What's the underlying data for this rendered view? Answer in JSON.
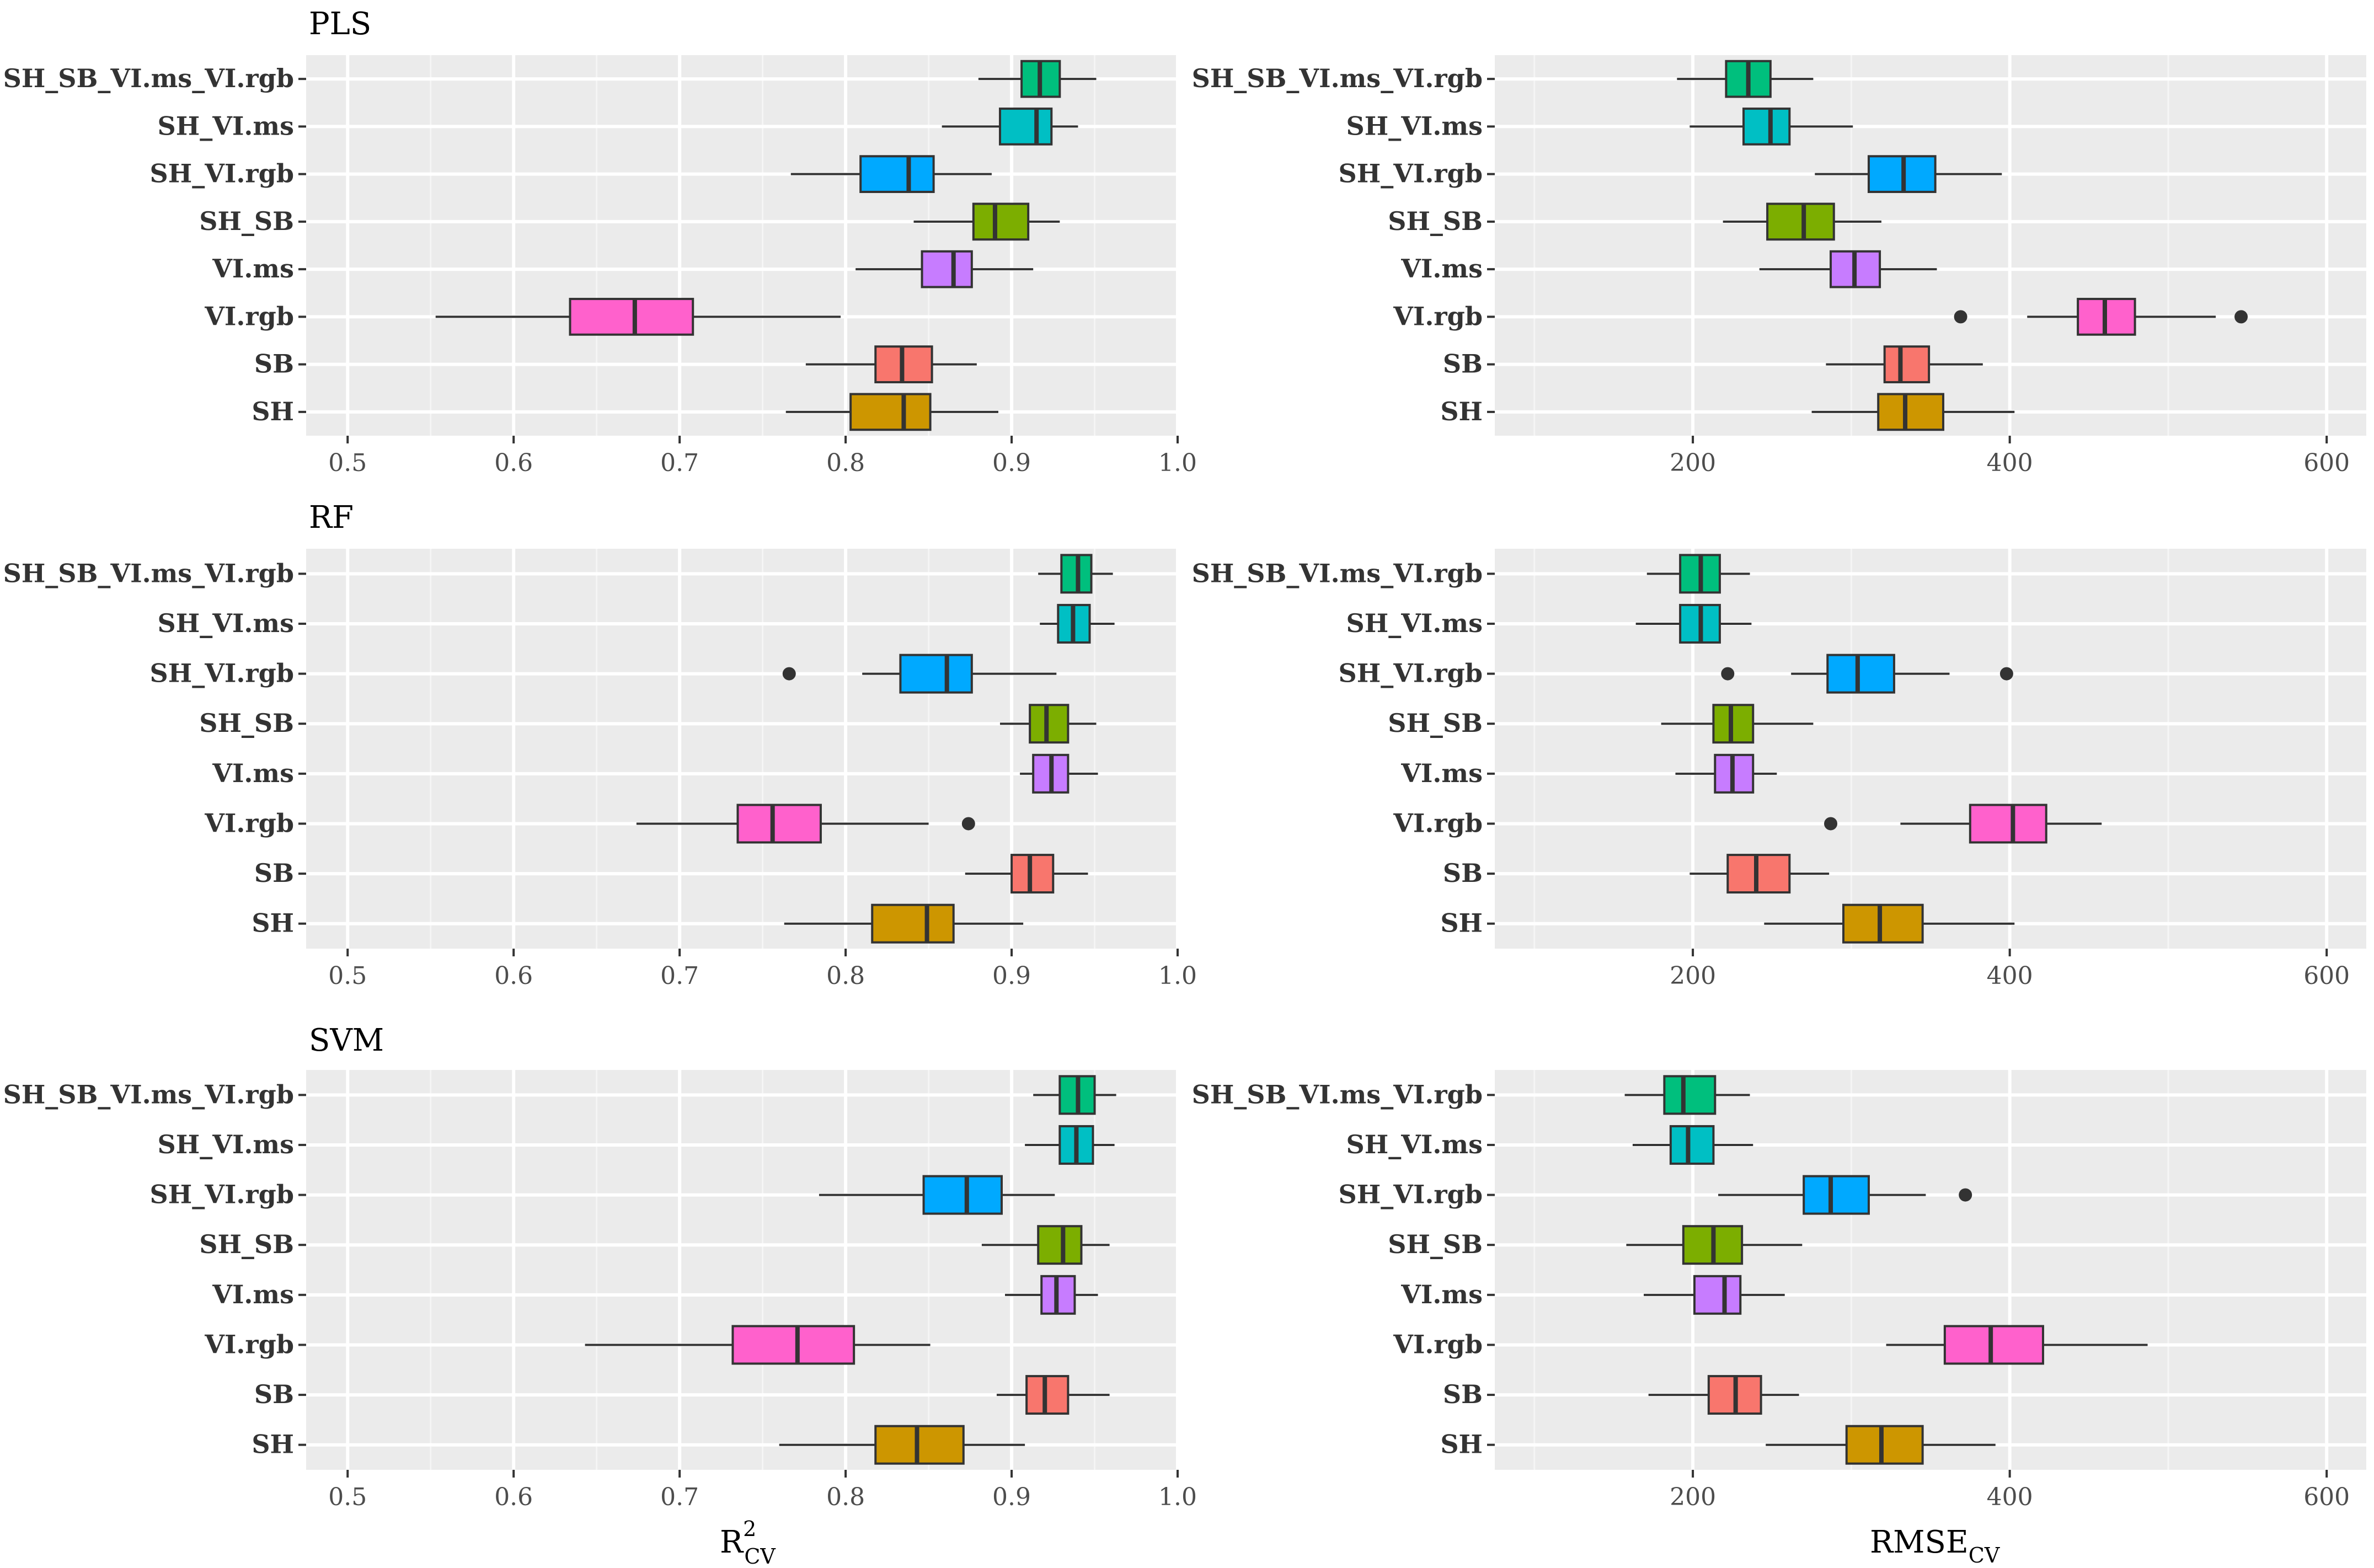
{
  "chart_data": [
    {
      "type": "boxplot",
      "title": "PLS",
      "metric": "R2",
      "xlim": [
        0.475,
        1.0
      ],
      "xticks": [
        "0.5",
        "0.6",
        "0.7",
        "0.8",
        "0.9",
        "1.0"
      ],
      "xtick_values": [
        0.5,
        0.6,
        0.7,
        0.8,
        0.9,
        1.0
      ],
      "categories": [
        "SH_SB_VI.ms_VI.rgb",
        "SH_VI.ms",
        "SH_VI.rgb",
        "SH_SB",
        "VI.ms",
        "VI.rgb",
        "SB",
        "SH"
      ],
      "series": [
        {
          "name": "SH_SB_VI.ms_VI.rgb",
          "whisker_low": 0.88,
          "q1": 0.906,
          "median": 0.917,
          "q3": 0.929,
          "whisker_high": 0.951,
          "outliers": []
        },
        {
          "name": "SH_VI.ms",
          "whisker_low": 0.858,
          "q1": 0.893,
          "median": 0.915,
          "q3": 0.924,
          "whisker_high": 0.94,
          "outliers": []
        },
        {
          "name": "SH_VI.rgb",
          "whisker_low": 0.767,
          "q1": 0.809,
          "median": 0.838,
          "q3": 0.853,
          "whisker_high": 0.888,
          "outliers": []
        },
        {
          "name": "SH_SB",
          "whisker_low": 0.841,
          "q1": 0.877,
          "median": 0.89,
          "q3": 0.91,
          "whisker_high": 0.929,
          "outliers": []
        },
        {
          "name": "VI.ms",
          "whisker_low": 0.806,
          "q1": 0.846,
          "median": 0.865,
          "q3": 0.876,
          "whisker_high": 0.913,
          "outliers": []
        },
        {
          "name": "VI.rgb",
          "whisker_low": 0.553,
          "q1": 0.634,
          "median": 0.673,
          "q3": 0.708,
          "whisker_high": 0.797,
          "outliers": []
        },
        {
          "name": "SB",
          "whisker_low": 0.776,
          "q1": 0.818,
          "median": 0.834,
          "q3": 0.852,
          "whisker_high": 0.879,
          "outliers": []
        },
        {
          "name": "SH",
          "whisker_low": 0.764,
          "q1": 0.803,
          "median": 0.835,
          "q3": 0.851,
          "whisker_high": 0.892,
          "outliers": []
        }
      ]
    },
    {
      "type": "boxplot",
      "title": "",
      "metric": "RMSE",
      "xlim": [
        75,
        625
      ],
      "xticks": [
        "200",
        "400",
        "600"
      ],
      "xtick_values": [
        200,
        400,
        600
      ],
      "categories": [
        "SH_SB_VI.ms_VI.rgb",
        "SH_VI.ms",
        "SH_VI.rgb",
        "SH_SB",
        "VI.ms",
        "VI.rgb",
        "SB",
        "SH"
      ],
      "series": [
        {
          "name": "SH_SB_VI.ms_VI.rgb",
          "whisker_low": 190,
          "q1": 221,
          "median": 235,
          "q3": 249,
          "whisker_high": 276,
          "outliers": []
        },
        {
          "name": "SH_VI.ms",
          "whisker_low": 198,
          "q1": 232,
          "median": 249,
          "q3": 261,
          "whisker_high": 301,
          "outliers": []
        },
        {
          "name": "SH_VI.rgb",
          "whisker_low": 277,
          "q1": 311,
          "median": 333,
          "q3": 353,
          "whisker_high": 395,
          "outliers": []
        },
        {
          "name": "SH_SB",
          "whisker_low": 219,
          "q1": 247,
          "median": 270,
          "q3": 289,
          "whisker_high": 319,
          "outliers": []
        },
        {
          "name": "VI.ms",
          "whisker_low": 242,
          "q1": 287,
          "median": 302,
          "q3": 318,
          "whisker_high": 354,
          "outliers": []
        },
        {
          "name": "VI.rgb",
          "whisker_low": 411,
          "q1": 443,
          "median": 460,
          "q3": 479,
          "whisker_high": 530,
          "outliers": [
            369,
            546
          ]
        },
        {
          "name": "SB",
          "whisker_low": 284,
          "q1": 321,
          "median": 331,
          "q3": 349,
          "whisker_high": 383,
          "outliers": []
        },
        {
          "name": "SH",
          "whisker_low": 275,
          "q1": 317,
          "median": 334,
          "q3": 358,
          "whisker_high": 403,
          "outliers": []
        }
      ]
    },
    {
      "type": "boxplot",
      "title": "RF",
      "metric": "R2",
      "xlim": [
        0.475,
        1.0
      ],
      "xticks": [
        "0.5",
        "0.6",
        "0.7",
        "0.8",
        "0.9",
        "1.0"
      ],
      "xtick_values": [
        0.5,
        0.6,
        0.7,
        0.8,
        0.9,
        1.0
      ],
      "categories": [
        "SH_SB_VI.ms_VI.rgb",
        "SH_VI.ms",
        "SH_VI.rgb",
        "SH_SB",
        "VI.ms",
        "VI.rgb",
        "SB",
        "SH"
      ],
      "series": [
        {
          "name": "SH_SB_VI.ms_VI.rgb",
          "whisker_low": 0.916,
          "q1": 0.93,
          "median": 0.94,
          "q3": 0.948,
          "whisker_high": 0.961,
          "outliers": []
        },
        {
          "name": "SH_VI.ms",
          "whisker_low": 0.917,
          "q1": 0.928,
          "median": 0.937,
          "q3": 0.947,
          "whisker_high": 0.962,
          "outliers": []
        },
        {
          "name": "SH_VI.rgb",
          "whisker_low": 0.81,
          "q1": 0.833,
          "median": 0.861,
          "q3": 0.876,
          "whisker_high": 0.927,
          "outliers": [
            0.766
          ]
        },
        {
          "name": "SH_SB",
          "whisker_low": 0.893,
          "q1": 0.911,
          "median": 0.921,
          "q3": 0.934,
          "whisker_high": 0.951,
          "outliers": []
        },
        {
          "name": "VI.ms",
          "whisker_low": 0.905,
          "q1": 0.913,
          "median": 0.924,
          "q3": 0.934,
          "whisker_high": 0.952,
          "outliers": []
        },
        {
          "name": "VI.rgb",
          "whisker_low": 0.674,
          "q1": 0.735,
          "median": 0.756,
          "q3": 0.785,
          "whisker_high": 0.85,
          "outliers": [
            0.874
          ]
        },
        {
          "name": "SB",
          "whisker_low": 0.872,
          "q1": 0.9,
          "median": 0.911,
          "q3": 0.925,
          "whisker_high": 0.946,
          "outliers": []
        },
        {
          "name": "SH",
          "whisker_low": 0.763,
          "q1": 0.816,
          "median": 0.849,
          "q3": 0.865,
          "whisker_high": 0.907,
          "outliers": []
        }
      ]
    },
    {
      "type": "boxplot",
      "title": "",
      "metric": "RMSE",
      "xlim": [
        75,
        625
      ],
      "xticks": [
        "200",
        "400",
        "600"
      ],
      "xtick_values": [
        200,
        400,
        600
      ],
      "categories": [
        "SH_SB_VI.ms_VI.rgb",
        "SH_VI.ms",
        "SH_VI.rgb",
        "SH_SB",
        "VI.ms",
        "VI.rgb",
        "SB",
        "SH"
      ],
      "series": [
        {
          "name": "SH_SB_VI.ms_VI.rgb",
          "whisker_low": 171,
          "q1": 192,
          "median": 205,
          "q3": 217,
          "whisker_high": 236,
          "outliers": []
        },
        {
          "name": "SH_VI.ms",
          "whisker_low": 164,
          "q1": 192,
          "median": 205,
          "q3": 217,
          "whisker_high": 237,
          "outliers": []
        },
        {
          "name": "SH_VI.rgb",
          "whisker_low": 262,
          "q1": 285,
          "median": 304,
          "q3": 327,
          "whisker_high": 362,
          "outliers": [
            222,
            398
          ]
        },
        {
          "name": "SH_SB",
          "whisker_low": 180,
          "q1": 213,
          "median": 224,
          "q3": 238,
          "whisker_high": 276,
          "outliers": []
        },
        {
          "name": "VI.ms",
          "whisker_low": 189,
          "q1": 214,
          "median": 225,
          "q3": 238,
          "whisker_high": 253,
          "outliers": []
        },
        {
          "name": "VI.rgb",
          "whisker_low": 331,
          "q1": 375,
          "median": 402,
          "q3": 423,
          "whisker_high": 458,
          "outliers": [
            287
          ]
        },
        {
          "name": "SB",
          "whisker_low": 198,
          "q1": 222,
          "median": 240,
          "q3": 261,
          "whisker_high": 286,
          "outliers": []
        },
        {
          "name": "SH",
          "whisker_low": 245,
          "q1": 295,
          "median": 318,
          "q3": 345,
          "whisker_high": 403,
          "outliers": []
        }
      ]
    },
    {
      "type": "boxplot",
      "title": "SVM",
      "metric": "R2",
      "xlim": [
        0.475,
        1.0
      ],
      "xticks": [
        "0.5",
        "0.6",
        "0.7",
        "0.8",
        "0.9",
        "1.0"
      ],
      "xtick_values": [
        0.5,
        0.6,
        0.7,
        0.8,
        0.9,
        1.0
      ],
      "xlabel": "R",
      "xlabel_sup": "2",
      "xlabel_sub": "CV",
      "categories": [
        "SH_SB_VI.ms_VI.rgb",
        "SH_VI.ms",
        "SH_VI.rgb",
        "SH_SB",
        "VI.ms",
        "VI.rgb",
        "SB",
        "SH"
      ],
      "series": [
        {
          "name": "SH_SB_VI.ms_VI.rgb",
          "whisker_low": 0.913,
          "q1": 0.929,
          "median": 0.94,
          "q3": 0.95,
          "whisker_high": 0.963,
          "outliers": []
        },
        {
          "name": "SH_VI.ms",
          "whisker_low": 0.908,
          "q1": 0.929,
          "median": 0.939,
          "q3": 0.949,
          "whisker_high": 0.962,
          "outliers": []
        },
        {
          "name": "SH_VI.rgb",
          "whisker_low": 0.784,
          "q1": 0.847,
          "median": 0.873,
          "q3": 0.894,
          "whisker_high": 0.926,
          "outliers": []
        },
        {
          "name": "SH_SB",
          "whisker_low": 0.882,
          "q1": 0.916,
          "median": 0.931,
          "q3": 0.942,
          "whisker_high": 0.959,
          "outliers": []
        },
        {
          "name": "VI.ms",
          "whisker_low": 0.896,
          "q1": 0.918,
          "median": 0.927,
          "q3": 0.938,
          "whisker_high": 0.952,
          "outliers": []
        },
        {
          "name": "VI.rgb",
          "whisker_low": 0.643,
          "q1": 0.732,
          "median": 0.771,
          "q3": 0.805,
          "whisker_high": 0.851,
          "outliers": []
        },
        {
          "name": "SB",
          "whisker_low": 0.891,
          "q1": 0.909,
          "median": 0.92,
          "q3": 0.934,
          "whisker_high": 0.959,
          "outliers": []
        },
        {
          "name": "SH",
          "whisker_low": 0.76,
          "q1": 0.818,
          "median": 0.843,
          "q3": 0.871,
          "whisker_high": 0.908,
          "outliers": []
        }
      ]
    },
    {
      "type": "boxplot",
      "title": "",
      "metric": "RMSE",
      "xlim": [
        75,
        625
      ],
      "xticks": [
        "200",
        "400",
        "600"
      ],
      "xtick_values": [
        200,
        400,
        600
      ],
      "xlabel": "RMSE",
      "xlabel_sub": "CV",
      "categories": [
        "SH_SB_VI.ms_VI.rgb",
        "SH_VI.ms",
        "SH_VI.rgb",
        "SH_SB",
        "VI.ms",
        "VI.rgb",
        "SB",
        "SH"
      ],
      "series": [
        {
          "name": "SH_SB_VI.ms_VI.rgb",
          "whisker_low": 157,
          "q1": 182,
          "median": 194,
          "q3": 214,
          "whisker_high": 236,
          "outliers": []
        },
        {
          "name": "SH_VI.ms",
          "whisker_low": 162,
          "q1": 186,
          "median": 197,
          "q3": 213,
          "whisker_high": 238,
          "outliers": []
        },
        {
          "name": "SH_VI.rgb",
          "whisker_low": 216,
          "q1": 270,
          "median": 287,
          "q3": 311,
          "whisker_high": 347,
          "outliers": [
            372
          ]
        },
        {
          "name": "SH_SB",
          "whisker_low": 158,
          "q1": 194,
          "median": 213,
          "q3": 231,
          "whisker_high": 269,
          "outliers": []
        },
        {
          "name": "VI.ms",
          "whisker_low": 169,
          "q1": 201,
          "median": 220,
          "q3": 230,
          "whisker_high": 258,
          "outliers": []
        },
        {
          "name": "VI.rgb",
          "whisker_low": 322,
          "q1": 359,
          "median": 388,
          "q3": 421,
          "whisker_high": 487,
          "outliers": []
        },
        {
          "name": "SB",
          "whisker_low": 172,
          "q1": 210,
          "median": 227,
          "q3": 243,
          "whisker_high": 267,
          "outliers": []
        },
        {
          "name": "SH",
          "whisker_low": 246,
          "q1": 297,
          "median": 319,
          "q3": 345,
          "whisker_high": 391,
          "outliers": []
        }
      ]
    }
  ],
  "colors": {
    "SH_SB_VI.ms_VI.rgb": "#00BF7D",
    "SH_VI.ms": "#00BFC4",
    "SH_VI.rgb": "#00A9FF",
    "SH_SB": "#7CAE00",
    "VI.ms": "#C77CFF",
    "VI.rgb": "#FF61CC",
    "SB": "#F8766D",
    "SH": "#CD9600",
    "panel_bg": "#EBEBEB",
    "grid_major": "#FFFFFF",
    "grid_minor": "#F5F5F5",
    "box_line": "#333333"
  }
}
